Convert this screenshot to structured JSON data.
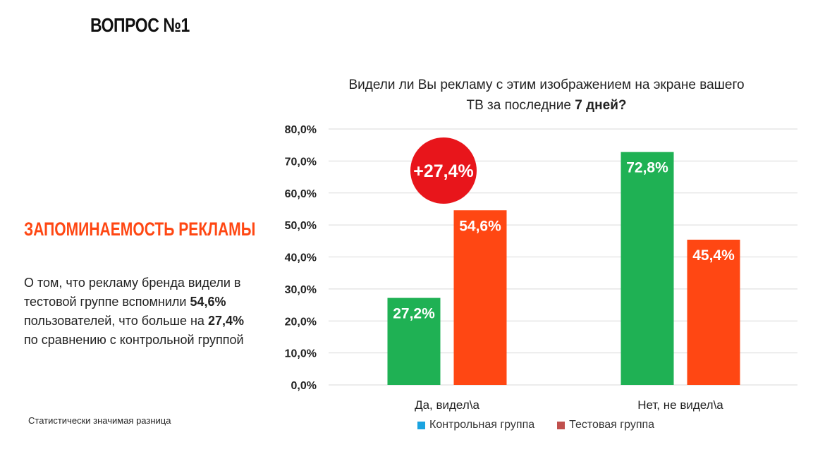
{
  "header": {
    "question_title": "ВОПРОС №1"
  },
  "left_panel": {
    "section_heading": "ЗАПОМИНАЕМОСТЬ РЕКЛАМЫ",
    "desc_part1": "О том, что рекламу бренда видели в тестовой группе вспомнили ",
    "desc_value1": "54,6%",
    "desc_part2": " пользователей, что больше на ",
    "desc_value2": "27,4%",
    "desc_part3": " по сравнению с контрольной группой",
    "footnote": "Статистически значимая разница"
  },
  "colors": {
    "control": "#1fb154",
    "test": "#ff4713",
    "legend_control": "#1aa3e0",
    "legend_test": "#c0504d",
    "diff_badge": "#e8151b",
    "grid": "#d9d9d9"
  },
  "chart_data": {
    "type": "bar",
    "title_part1": "Видели ли Вы рекламу с этим изображением на экране вашего ТВ за последние ",
    "title_bold": "7 дней?",
    "categories": [
      "Да, видел\\а",
      "Нет, не видел\\а"
    ],
    "series": [
      {
        "name": "Контрольная группа",
        "values": [
          27.2,
          72.8
        ],
        "labels": [
          "27,2%",
          "72,8%"
        ]
      },
      {
        "name": "Тестовая группа",
        "values": [
          54.6,
          45.4
        ],
        "labels": [
          "54,6%",
          "45,4%"
        ]
      }
    ],
    "ylim": [
      0,
      80
    ],
    "yticks": [
      0,
      10,
      20,
      30,
      40,
      50,
      60,
      70,
      80
    ],
    "ytick_labels": [
      "0,0%",
      "10,0%",
      "20,0%",
      "30,0%",
      "40,0%",
      "50,0%",
      "60,0%",
      "70,0%",
      "80,0%"
    ],
    "annotation": {
      "text": "+27,4%",
      "category_index": 0
    },
    "legend_position": "bottom",
    "grid": true
  }
}
